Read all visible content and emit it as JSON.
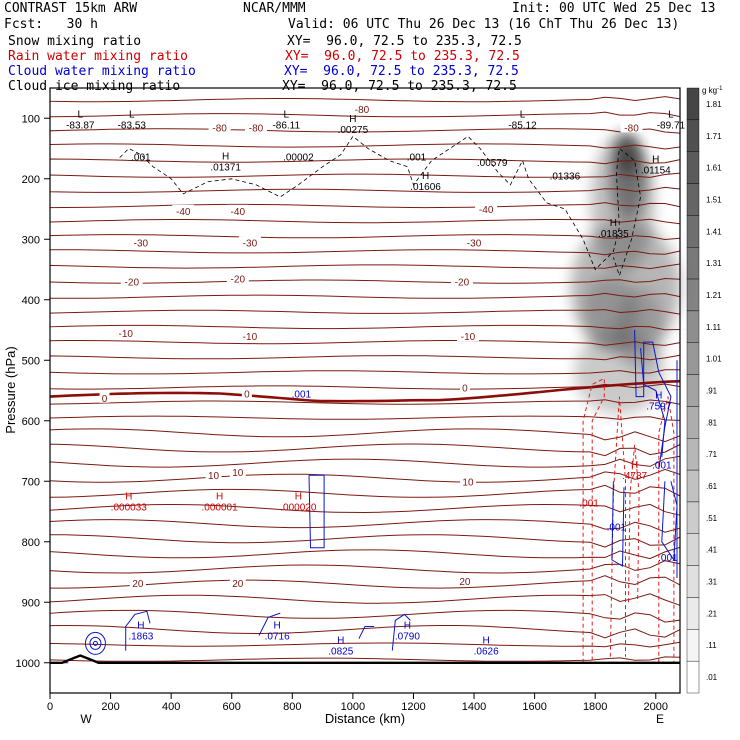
{
  "header": {
    "model": "CONTRAST 15km ARW",
    "org": "NCAR/MMM",
    "init": "Init: 00 UTC Wed 25 Dec 13",
    "fcst": "Fcst:   30 h",
    "valid": "Valid: 06 UTC Thu 26 Dec 13 (16 ChT Thu 26 Dec 13)"
  },
  "fields": [
    {
      "name": "Snow mixing ratio",
      "xy": "XY=  96.0, 72.5 to 235.3, 72.5",
      "color": "#000000"
    },
    {
      "name": "Rain water mixing ratio",
      "xy": "XY=  96.0, 72.5 to 235.3, 72.5",
      "color": "#d00000"
    },
    {
      "name": "Cloud water mixing ratio",
      "xy": "XY=  96.0, 72.5 to 235.3, 72.5",
      "color": "#0000d0"
    },
    {
      "name": "Cloud ice mixing ratio",
      "xy": "XY=  96.0, 72.5 to 235.3, 72.5",
      "color": "#000000"
    }
  ],
  "chart_data": {
    "type": "cross-section",
    "xlabel": "Distance (km)",
    "ylabel": "Pressure (hPa)",
    "xlim": [
      0,
      2080
    ],
    "ylim": [
      1050,
      50
    ],
    "x_ticks": [
      0,
      200,
      400,
      600,
      800,
      1000,
      1200,
      1400,
      1600,
      1800,
      2000
    ],
    "y_ticks": [
      100,
      200,
      300,
      400,
      500,
      600,
      700,
      800,
      900,
      1000
    ],
    "side_labels": {
      "left": "W",
      "right": "E"
    },
    "colorbar": {
      "unit": "g kg",
      "unit_exp": "-1",
      "labels": [
        "1.81",
        "1.71",
        "1.61",
        "1.51",
        "1.41",
        "1.31",
        "1.21",
        "1.11",
        "1.01",
        ".91",
        ".81",
        ".71",
        ".61",
        ".51",
        ".41",
        ".31",
        ".21",
        ".11",
        ".01"
      ]
    },
    "temperature_labels": [
      {
        "text": "-80",
        "x": 1030,
        "p": 85
      },
      {
        "text": "-80",
        "x": 560,
        "p": 115
      },
      {
        "text": "-80",
        "x": 680,
        "p": 115
      },
      {
        "text": "-80",
        "x": 1920,
        "p": 115
      },
      {
        "text": "-40",
        "x": 440,
        "p": 253
      },
      {
        "text": "-40",
        "x": 620,
        "p": 253
      },
      {
        "text": "-40",
        "x": 1440,
        "p": 250
      },
      {
        "text": "-30",
        "x": 300,
        "p": 305
      },
      {
        "text": "-30",
        "x": 660,
        "p": 305
      },
      {
        "text": "-30",
        "x": 1400,
        "p": 305
      },
      {
        "text": "-20",
        "x": 270,
        "p": 370
      },
      {
        "text": "-20",
        "x": 620,
        "p": 365
      },
      {
        "text": "-20",
        "x": 1360,
        "p": 370
      },
      {
        "text": "-10",
        "x": 250,
        "p": 455
      },
      {
        "text": "-10",
        "x": 660,
        "p": 460
      },
      {
        "text": "-10",
        "x": 1380,
        "p": 460
      },
      {
        "text": "0",
        "x": 180,
        "p": 562
      },
      {
        "text": "0",
        "x": 650,
        "p": 555
      },
      {
        "text": "0",
        "x": 1370,
        "p": 545
      },
      {
        "text": "10",
        "x": 540,
        "p": 690
      },
      {
        "text": "10",
        "x": 620,
        "p": 685
      },
      {
        "text": "10",
        "x": 1380,
        "p": 700
      },
      {
        "text": "20",
        "x": 290,
        "p": 868
      },
      {
        "text": "20",
        "x": 620,
        "p": 868
      },
      {
        "text": "20",
        "x": 1370,
        "p": 865
      }
    ],
    "extrema_black": [
      {
        "mark": "L",
        "value": "-83.87",
        "x": 100,
        "p": 110
      },
      {
        "mark": "L",
        "value": "-83.53",
        "x": 270,
        "p": 110
      },
      {
        "mark": "L",
        "value": "-86.11",
        "x": 780,
        "p": 110
      },
      {
        "mark": "H",
        "value": ".00275",
        "x": 1000,
        "p": 118
      },
      {
        "mark": "L",
        "value": "-85.12",
        "x": 1560,
        "p": 110
      },
      {
        "mark": "L",
        "value": "-89.71",
        "x": 2050,
        "p": 110
      },
      {
        "mark": "",
        "value": ".001",
        "x": 300,
        "p": 163
      },
      {
        "mark": "",
        "value": ".00002",
        "x": 820,
        "p": 163
      },
      {
        "mark": "",
        "value": ".001",
        "x": 1210,
        "p": 163
      },
      {
        "mark": "H",
        "value": ".01371",
        "x": 580,
        "p": 180
      },
      {
        "mark": "",
        "value": ".00579",
        "x": 1460,
        "p": 172
      },
      {
        "mark": "",
        "value": ".01336",
        "x": 1700,
        "p": 195
      },
      {
        "mark": "H",
        "value": ".01154",
        "x": 2000,
        "p": 185
      },
      {
        "mark": "H",
        "value": ".01606",
        "x": 1240,
        "p": 212
      },
      {
        "mark": "H",
        "value": ".01835",
        "x": 1860,
        "p": 290
      }
    ],
    "extrema_red": [
      {
        "mark": "H",
        "value": ".000033",
        "x": 260,
        "p": 742
      },
      {
        "mark": "H",
        "value": ".000001",
        "x": 560,
        "p": 742
      },
      {
        "mark": "H",
        "value": ".000020",
        "x": 820,
        "p": 742
      },
      {
        "mark": "",
        "value": ".001",
        "x": 1780,
        "p": 735
      },
      {
        "mark": "H",
        "value": ".4787",
        "x": 1930,
        "p": 690
      }
    ],
    "extrema_blue": [
      {
        "mark": "",
        "value": ".001",
        "x": 830,
        "p": 555
      },
      {
        "mark": "H",
        "value": ".7597",
        "x": 2010,
        "p": 575
      },
      {
        "mark": "",
        "value": ".001",
        "x": 2020,
        "p": 672
      },
      {
        "mark": "",
        "value": ".001",
        "x": 1870,
        "p": 775
      },
      {
        "mark": "",
        "value": ".001",
        "x": 2040,
        "p": 825
      },
      {
        "mark": "H",
        "value": ".1863",
        "x": 300,
        "p": 955
      },
      {
        "mark": "H",
        "value": ".0716",
        "x": 750,
        "p": 955
      },
      {
        "mark": "H",
        "value": ".0825",
        "x": 960,
        "p": 980
      },
      {
        "mark": "H",
        "value": ".0790",
        "x": 1180,
        "p": 955
      },
      {
        "mark": "H",
        "value": ".0626",
        "x": 1440,
        "p": 980
      }
    ]
  }
}
